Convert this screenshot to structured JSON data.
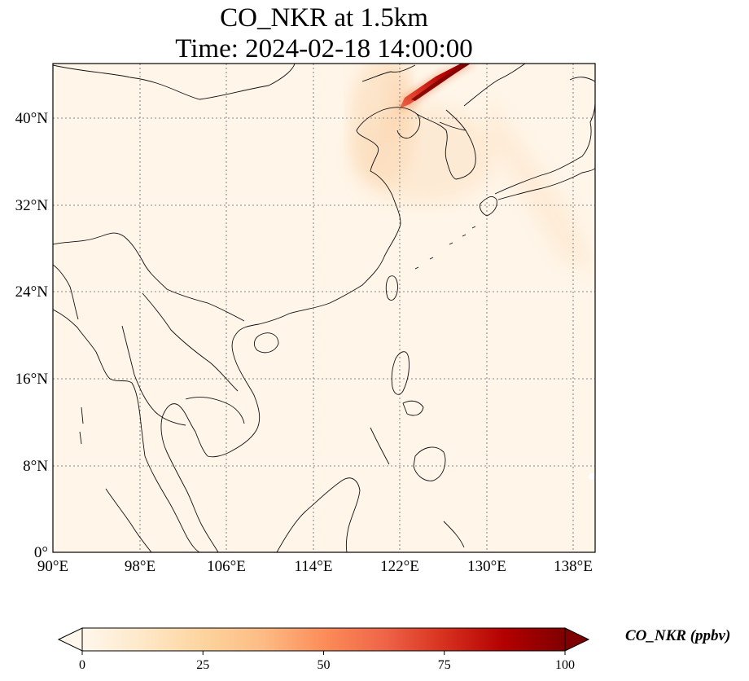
{
  "title": {
    "line1": "CO_NKR at 1.5km",
    "line2": "Time: 2024-02-18 14:00:00"
  },
  "map": {
    "lon_range": [
      90,
      140
    ],
    "lat_range": [
      0,
      45
    ],
    "lon_ticks": [
      "90°E",
      "98°E",
      "106°E",
      "114°E",
      "122°E",
      "130°E",
      "138°E"
    ],
    "lat_ticks": [
      "0°",
      "8°N",
      "16°N",
      "24°N",
      "32°N",
      "40°N"
    ],
    "gridlines": "dotted",
    "colormap": "OrRd",
    "background_color": "#fff5e8",
    "plume_color": "#8b0000"
  },
  "colorbar": {
    "label": "CO_NKR (ppbv)",
    "ticks": [
      "0",
      "25",
      "50",
      "75",
      "100"
    ],
    "range": [
      0,
      100
    ],
    "extend": "both",
    "colors": [
      "#fff7ec",
      "#fee8c8",
      "#fdd49e",
      "#fdbb84",
      "#fc8d59",
      "#ef6548",
      "#d7301f",
      "#b30000",
      "#7f0000"
    ]
  }
}
